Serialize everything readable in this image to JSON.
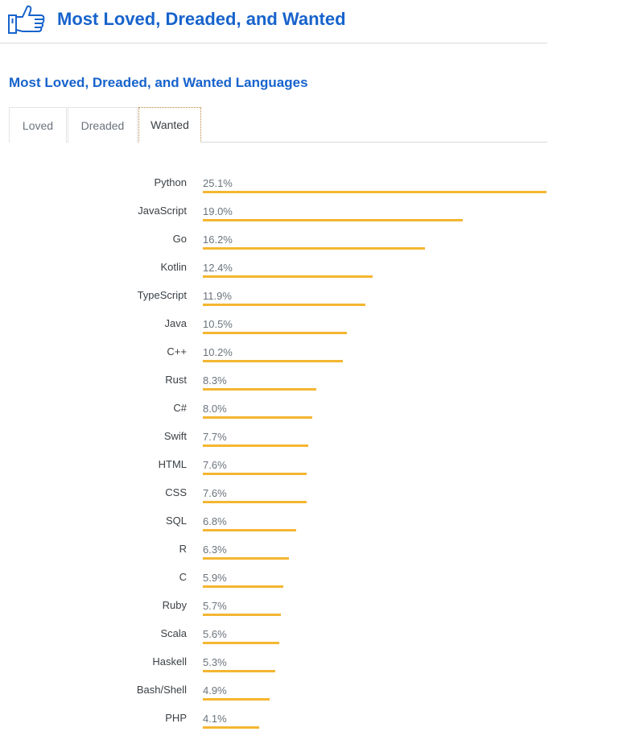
{
  "header": {
    "title": "Most Loved, Dreaded, and Wanted",
    "icon": "thumbs-up-icon"
  },
  "section": {
    "title": "Most Loved, Dreaded, and Wanted Languages"
  },
  "tabs": [
    {
      "label": "Loved",
      "active": false
    },
    {
      "label": "Dreaded",
      "active": false
    },
    {
      "label": "Wanted",
      "active": true
    }
  ],
  "colors": {
    "accent": "#1763cc",
    "bar": "#f4b631",
    "tab_active_border": "#b7833a"
  },
  "chart_data": {
    "type": "bar",
    "orientation": "horizontal",
    "categories": [
      "Python",
      "JavaScript",
      "Go",
      "Kotlin",
      "TypeScript",
      "Java",
      "C++",
      "Rust",
      "C#",
      "Swift",
      "HTML",
      "CSS",
      "SQL",
      "R",
      "C",
      "Ruby",
      "Scala",
      "Haskell",
      "Bash/Shell",
      "PHP"
    ],
    "values": [
      25.1,
      19.0,
      16.2,
      12.4,
      11.9,
      10.5,
      10.2,
      8.3,
      8.0,
      7.7,
      7.6,
      7.6,
      6.8,
      6.3,
      5.9,
      5.7,
      5.6,
      5.3,
      4.9,
      4.1
    ],
    "labels": [
      "25.1%",
      "19.0%",
      "16.2%",
      "12.4%",
      "11.9%",
      "10.5%",
      "10.2%",
      "8.3%",
      "8.0%",
      "7.7%",
      "7.6%",
      "7.6%",
      "6.8%",
      "6.3%",
      "5.9%",
      "5.7%",
      "5.6%",
      "5.3%",
      "4.9%",
      "4.1%"
    ],
    "unit": "%",
    "xlim": [
      0,
      25.1
    ]
  }
}
